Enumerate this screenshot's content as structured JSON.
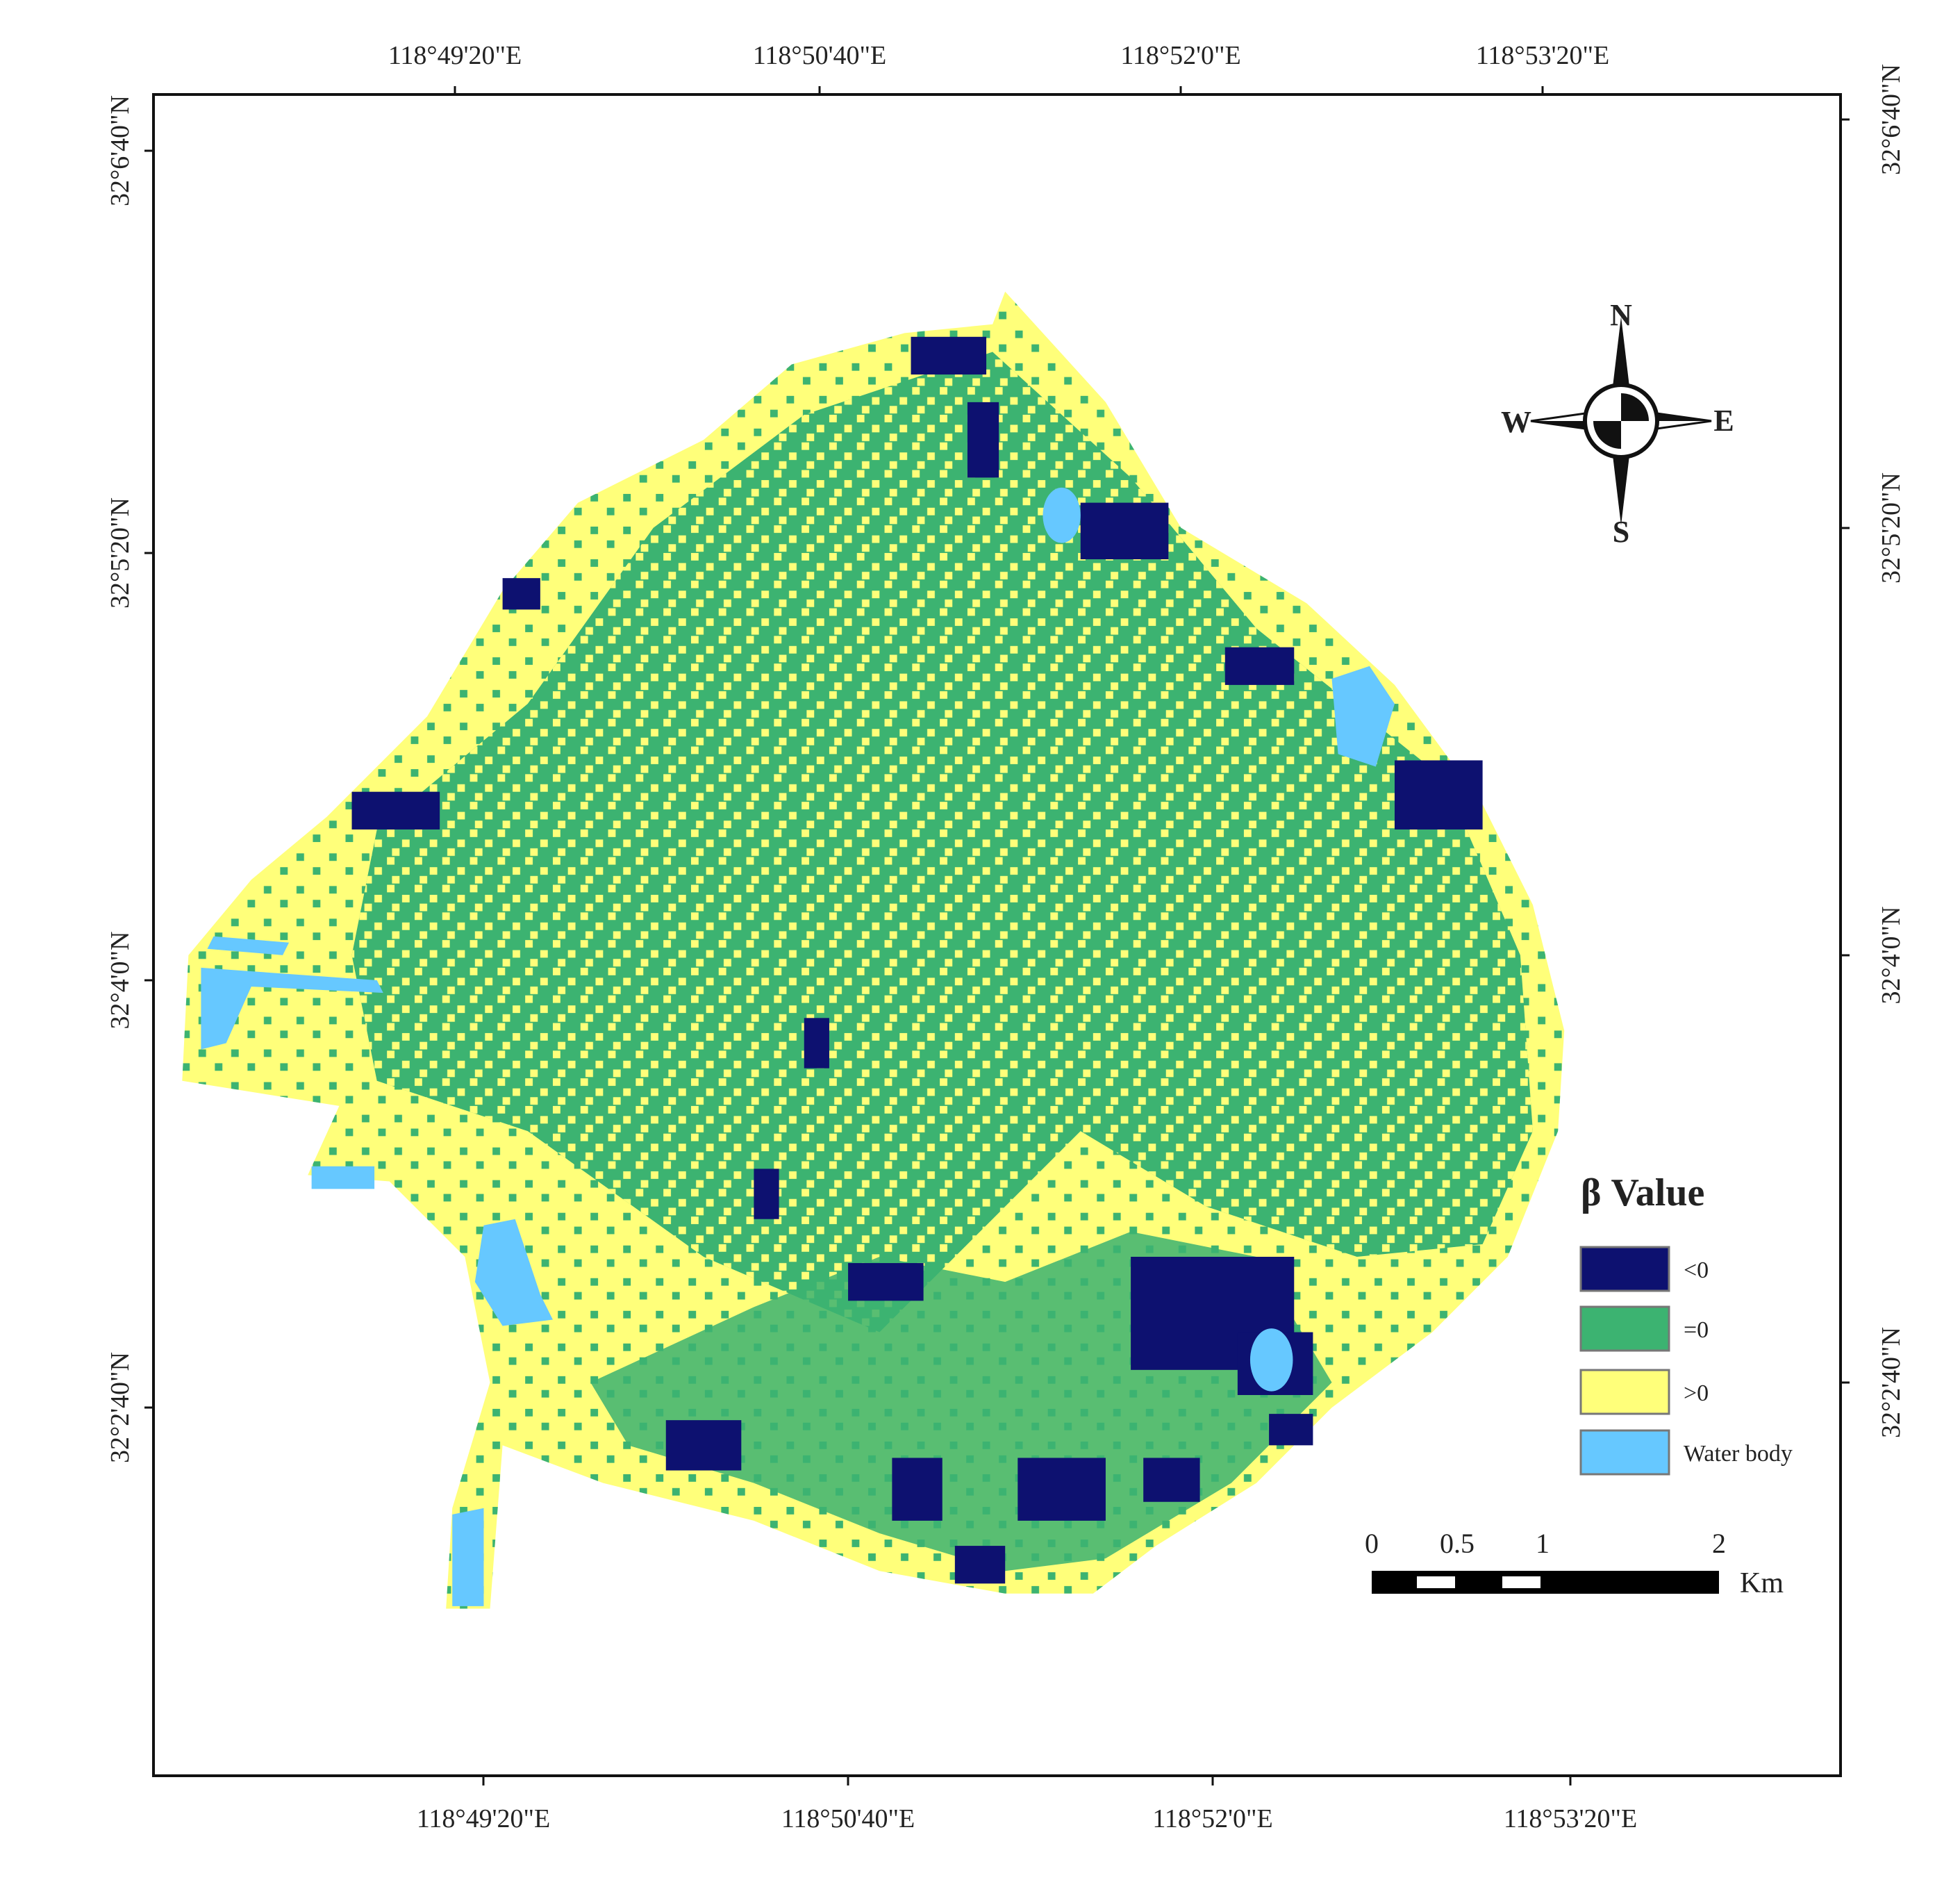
{
  "map": {
    "top_ticks": [
      "118°49'20\"E",
      "118°50'40\"E",
      "118°52'0\"E",
      "118°53'20\"E"
    ],
    "bottom_ticks": [
      "118°49'20\"E",
      "118°50'40\"E",
      "118°52'0\"E",
      "118°53'20\"E"
    ],
    "left_ticks": [
      "32°6'40\"N",
      "32°5'20\"N",
      "32°4'0\"N",
      "32°2'40\"N"
    ],
    "right_ticks": [
      "32°6'40\"N",
      "32°5'20\"N",
      "32°4'0\"N",
      "32°2'40\"N"
    ],
    "compass": {
      "north": "N",
      "south": "S",
      "west": "W",
      "east": "E"
    },
    "legend": {
      "title": "β Value",
      "items": [
        "<0",
        "=0",
        ">0",
        "Water body"
      ]
    },
    "scale_bar": {
      "labels": [
        "0",
        "0.5",
        "1",
        "2"
      ],
      "unit": "Km"
    }
  }
}
